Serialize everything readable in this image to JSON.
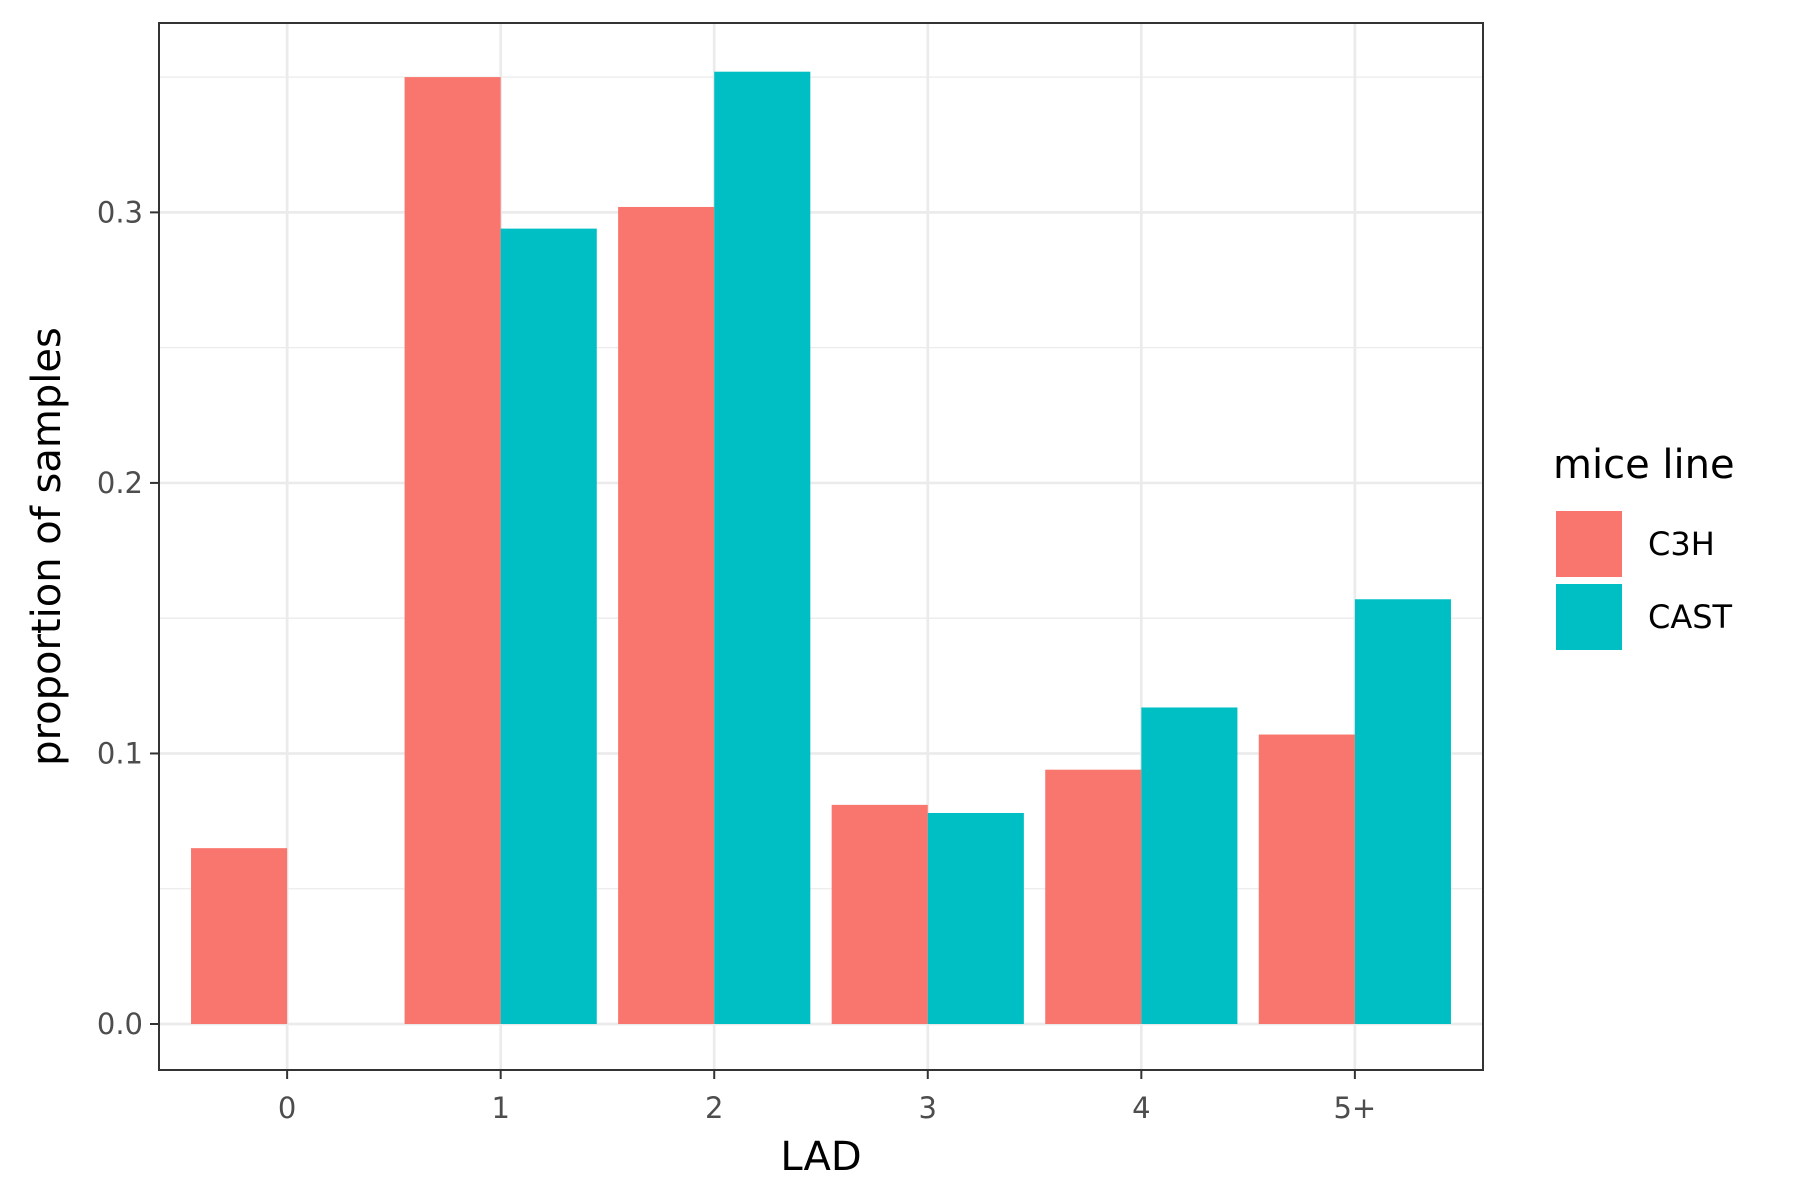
{
  "chart_data": {
    "type": "bar",
    "title": "",
    "xlabel": "LAD",
    "ylabel": "proportion of samples",
    "categories": [
      "0",
      "1",
      "2",
      "3",
      "4",
      "5+"
    ],
    "series": [
      {
        "name": "C3H",
        "color": "#F8766D",
        "values": [
          0.065,
          0.35,
          0.302,
          0.081,
          0.094,
          0.107
        ]
      },
      {
        "name": "CAST",
        "color": "#00BFC4",
        "values": [
          null,
          0.294,
          0.352,
          0.078,
          0.117,
          0.157
        ]
      }
    ],
    "ylim": [
      -0.017,
      0.37
    ],
    "yticks": [
      0.0,
      0.1,
      0.2,
      0.3
    ],
    "ytick_labels": [
      "0.0",
      "0.1",
      "0.2",
      "0.3"
    ],
    "grid": true,
    "legend": {
      "title": "mice line",
      "position": "right"
    }
  }
}
